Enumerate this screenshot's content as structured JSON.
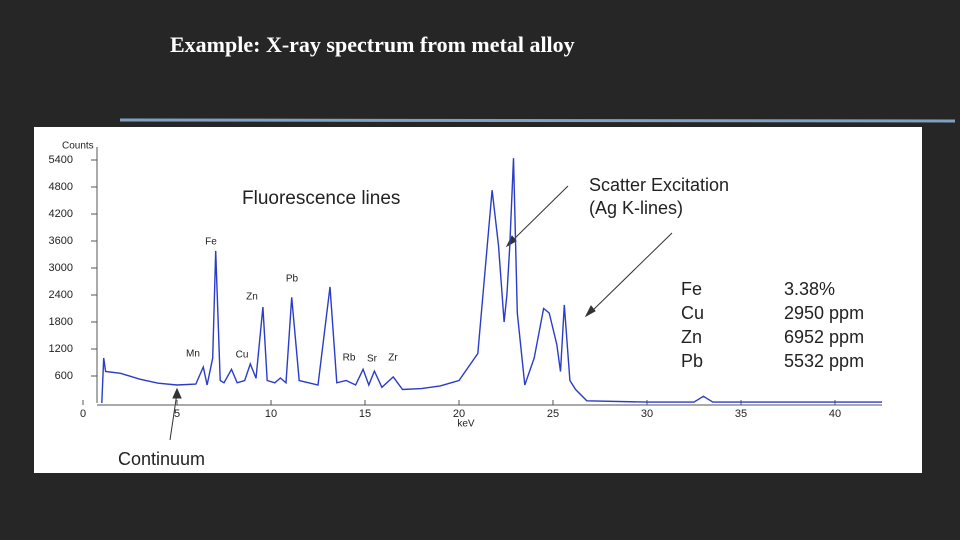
{
  "chart_data": {
    "type": "line",
    "title": "Example: X-ray spectrum from metal alloy",
    "y_label": "Counts",
    "x_label": "keV",
    "color": "#2a3cc8",
    "xlim": [
      0,
      42.5
    ],
    "ylim": [
      0,
      5800
    ],
    "xticks": [
      0,
      5,
      10,
      15,
      20,
      25,
      30,
      35,
      40
    ],
    "yticks": [
      600,
      1200,
      1800,
      2400,
      3000,
      3600,
      4200,
      4800,
      5400
    ],
    "x": [
      1.0,
      1.1,
      1.2,
      2,
      3,
      4,
      5,
      6,
      6.4,
      6.6,
      6.9,
      7.06,
      7.3,
      7.5,
      7.9,
      8.2,
      8.6,
      8.9,
      9.2,
      9.57,
      9.8,
      10.2,
      10.5,
      10.8,
      11.1,
      11.5,
      12.5,
      13.14,
      13.5,
      14.0,
      14.5,
      14.9,
      15.2,
      15.5,
      15.9,
      16.5,
      17,
      18,
      19,
      20,
      21,
      21.4,
      21.76,
      22.1,
      22.4,
      22.55,
      22.7,
      22.9,
      23.1,
      23.5,
      24,
      24.5,
      24.8,
      25.2,
      25.4,
      25.6,
      25.9,
      26.2,
      26.8,
      30,
      32.5,
      33,
      33.5,
      42.5
    ],
    "values": [
      0,
      1000,
      700,
      660,
      530,
      440,
      400,
      420,
      800,
      400,
      1000,
      3380,
      500,
      450,
      750,
      450,
      500,
      870,
      550,
      2130,
      500,
      450,
      555,
      450,
      2350,
      500,
      400,
      2580,
      450,
      500,
      400,
      750,
      400,
      710,
      350,
      580,
      300,
      320,
      380,
      500,
      1100,
      3000,
      4730,
      3500,
      1800,
      2400,
      3500,
      5440,
      2000,
      400,
      1000,
      2100,
      2000,
      1300,
      700,
      2180,
      500,
      300,
      50,
      20,
      20,
      150,
      20,
      20
    ],
    "annotations": [
      "Fluorescence lines",
      "Scatter Excitation",
      "(Ag K-lines)",
      "Continuum"
    ],
    "peak_labels": [
      "Fe",
      "Zn",
      "Pb",
      "Mn",
      "Cu",
      "Rb",
      "Sr",
      "Zr"
    ],
    "composition": [
      [
        "Fe",
        "3.38%"
      ],
      [
        "Cu",
        "2950 ppm"
      ],
      [
        "Zn",
        "6952 ppm"
      ],
      [
        "Pb",
        "5532 ppm"
      ]
    ]
  }
}
